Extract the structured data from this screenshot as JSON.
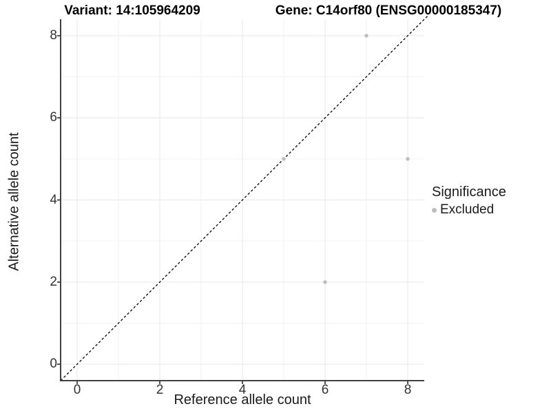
{
  "titles": {
    "variant": "Variant: 14:105964209",
    "gene": "Gene: C14orf80 (ENSG00000185347)"
  },
  "legend": {
    "title": "Significance",
    "items": [
      {
        "label": "Excluded",
        "color": "#bdbdbd"
      }
    ]
  },
  "chart_data": {
    "type": "scatter",
    "title_left": "Variant: 14:105964209",
    "title_right": "Gene: C14orf80 (ENSG00000185347)",
    "xlabel": "Reference allele count",
    "ylabel": "Alternative allele count",
    "xlim": [
      -0.4,
      8.4
    ],
    "ylim": [
      -0.4,
      8.4
    ],
    "xticks": [
      0,
      2,
      4,
      6,
      8
    ],
    "yticks": [
      0,
      2,
      4,
      6,
      8
    ],
    "minor_gridlines": [
      1,
      3,
      5,
      7
    ],
    "grid": true,
    "legend_position": "right",
    "series": [
      {
        "name": "Excluded",
        "color": "#bdbdbd",
        "points": [
          [
            5,
            5
          ],
          [
            6,
            2
          ],
          [
            7,
            8
          ],
          [
            8,
            5
          ]
        ]
      }
    ],
    "reference_line": {
      "type": "identity",
      "slope": 1,
      "intercept": 0,
      "style": "dashed",
      "color": "#000000"
    },
    "style": {
      "background": "#ffffff",
      "grid_major_color": "#e7e7e7",
      "grid_minor_color": "#f2f2f2",
      "axis_line_color": "#404040",
      "tick_text_color": "#333333"
    }
  }
}
